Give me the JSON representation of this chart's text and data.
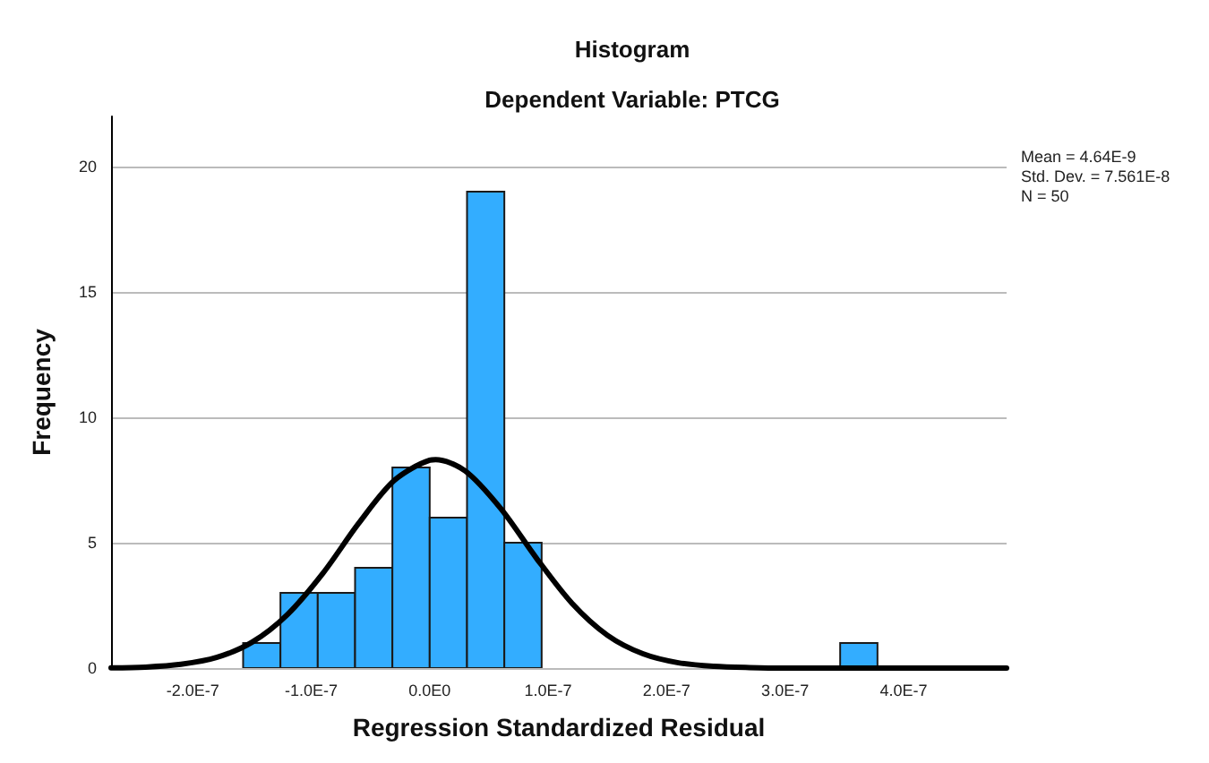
{
  "chart_data": {
    "type": "histogram",
    "title": "Histogram",
    "subtitle": "Dependent Variable: PTCG",
    "xlabel": "Regression Standardized Residual",
    "ylabel": "Frequency",
    "series": [
      {
        "color": "#33adff",
        "bins": [
          -1.575e-07,
          -1.26e-07,
          -9.45e-08,
          -6.3e-08,
          -3.15e-08,
          0,
          3.15e-08,
          6.3e-08,
          9.45e-08,
          1.26e-07,
          1.575e-07,
          1.89e-07,
          2.205e-07,
          2.52e-07,
          2.835e-07,
          3.15e-07,
          3.465e-07,
          3.78e-07
        ],
        "values": [
          1,
          3,
          3,
          4,
          8,
          6,
          19,
          5,
          0,
          0,
          0,
          0,
          0,
          0,
          0,
          0,
          1
        ]
      },
      {
        "type": "line",
        "color": "#000000",
        "x": [
          -2.69e-07,
          -2.4e-07,
          -2.1e-07,
          -1.8e-07,
          -1.5e-07,
          -1.2e-07,
          -9e-08,
          -6e-08,
          -3e-08,
          0,
          5e-09,
          3e-08,
          6e-08,
          9e-08,
          1.2e-07,
          1.5e-07,
          1.8e-07,
          2.1e-07,
          2.4e-07,
          2.7e-07,
          3e-07,
          3.5e-07,
          4.87e-07
        ],
        "values": [
          0.01,
          0.04,
          0.15,
          0.42,
          1.03,
          2.14,
          3.79,
          5.77,
          7.48,
          8.29,
          8.31,
          7.86,
          6.36,
          4.39,
          2.59,
          1.31,
          0.57,
          0.21,
          0.07,
          0.02,
          0,
          0,
          0
        ]
      }
    ],
    "xlim": [
      -2.69e-07,
      4.87e-07
    ],
    "ylim": [
      0,
      22
    ],
    "xticks": [
      {
        "value": -2e-07,
        "label": "-2.0E-7"
      },
      {
        "value": -1e-07,
        "label": "-1.0E-7"
      },
      {
        "value": 0,
        "label": "0.0E0"
      },
      {
        "value": 1e-07,
        "label": "1.0E-7"
      },
      {
        "value": 2e-07,
        "label": "2.0E-7"
      },
      {
        "value": 3e-07,
        "label": "3.0E-7"
      },
      {
        "value": 4e-07,
        "label": "4.0E-7"
      }
    ],
    "yticks": [
      0,
      5,
      10,
      15,
      20
    ],
    "grid": "y",
    "line_style": "solid",
    "marker": "none",
    "annotations": [
      "Mean = 4.64E-9",
      "Std. Dev. = 7.561E-8",
      "N = 50"
    ]
  }
}
